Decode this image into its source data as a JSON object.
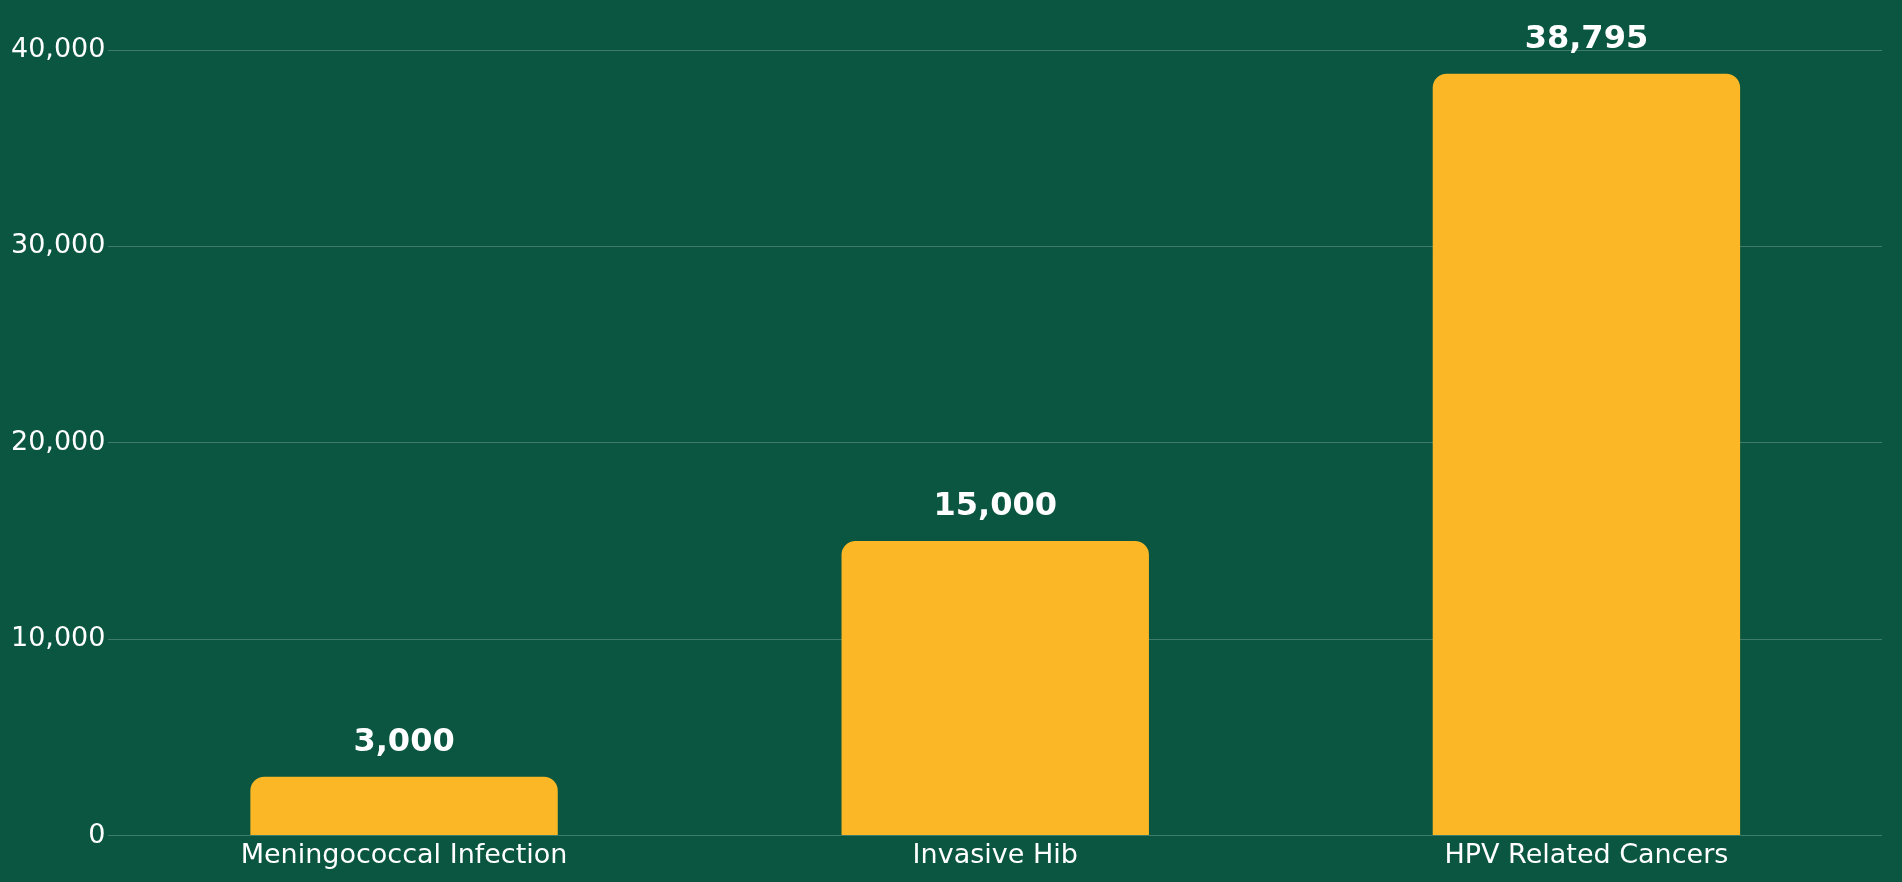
{
  "chart_data": {
    "type": "bar",
    "categories": [
      "Meningococcal Infection",
      "Invasive Hib",
      "HPV Related Cancers"
    ],
    "values": [
      3000,
      15000,
      38795
    ],
    "value_labels": [
      "3,000",
      "15,000",
      "38,795"
    ],
    "color": "#fbb726",
    "ylim": [
      0,
      40000
    ],
    "yticks": [
      {
        "value": 0,
        "label": "0"
      },
      {
        "value": 10000,
        "label": "10,000"
      },
      {
        "value": 20000,
        "label": "20,000"
      },
      {
        "value": 30000,
        "label": "30,000"
      },
      {
        "value": 40000,
        "label": "40,000"
      }
    ],
    "grid": "y"
  }
}
